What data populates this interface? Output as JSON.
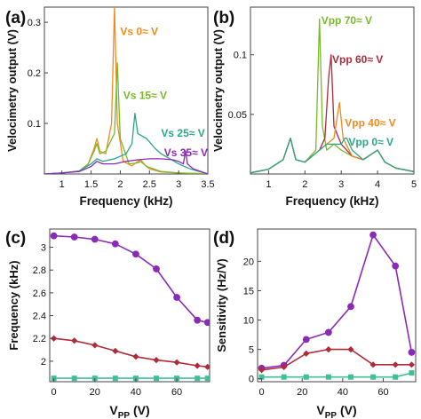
{
  "panels": [
    {
      "label": "(a)",
      "chart_data": {
        "type": "line",
        "xlabel": "Frequency (kHz)",
        "ylabel": "Velocimetry output  (V)",
        "xlim": [
          0.7,
          3.5
        ],
        "ylim": [
          0,
          0.33
        ],
        "xticks": [
          1,
          1.5,
          2,
          2.5,
          3,
          3.5
        ],
        "xtick_labels": [
          "1",
          "1.5",
          "2",
          "2.5",
          "3",
          "3.5"
        ],
        "yticks": [
          0.1,
          0.2,
          0.3
        ],
        "ytick_labels": [
          "0.1",
          "0.2",
          "0.3"
        ],
        "grid": false,
        "series": [
          {
            "name": "Vs 0≈ V",
            "color": "#f08a1e",
            "x": [
              0.7,
              1.0,
              1.3,
              1.45,
              1.55,
              1.6,
              1.65,
              1.75,
              1.85,
              1.9,
              1.95,
              2.05,
              2.2,
              2.3,
              2.35,
              2.42,
              2.5,
              2.7,
              3.0,
              3.3,
              3.5
            ],
            "y": [
              0.0,
              0.002,
              0.006,
              0.02,
              0.05,
              0.07,
              0.045,
              0.04,
              0.1,
              0.33,
              0.1,
              0.025,
              0.016,
              0.025,
              0.028,
              0.018,
              0.01,
              0.004,
              0.002,
              0.001,
              0.0
            ]
          },
          {
            "name": "Vs 15≈ V",
            "color": "#78b92a",
            "x": [
              0.7,
              1.0,
              1.3,
              1.45,
              1.55,
              1.6,
              1.65,
              1.75,
              1.9,
              1.95,
              2.0,
              2.15,
              2.3,
              2.35,
              2.45,
              2.7,
              3.0,
              3.3,
              3.5
            ],
            "y": [
              0.0,
              0.002,
              0.006,
              0.02,
              0.045,
              0.06,
              0.04,
              0.045,
              0.08,
              0.22,
              0.07,
              0.02,
              0.022,
              0.025,
              0.015,
              0.005,
              0.002,
              0.001,
              0.0
            ]
          },
          {
            "name": "Vs 25≈ V",
            "color": "#2ba58a",
            "x": [
              0.7,
              1.0,
              1.3,
              1.5,
              1.6,
              1.7,
              1.9,
              2.1,
              2.2,
              2.25,
              2.3,
              2.45,
              2.6,
              2.7,
              2.85,
              3.0,
              3.2,
              3.5
            ],
            "y": [
              0.0,
              0.002,
              0.006,
              0.02,
              0.03,
              0.025,
              0.03,
              0.04,
              0.06,
              0.12,
              0.08,
              0.07,
              0.05,
              0.04,
              0.03,
              0.02,
              0.01,
              0.0
            ]
          },
          {
            "name": "Vs 35≈ V",
            "color": "#8a2ab8",
            "x": [
              0.7,
              1.0,
              1.3,
              1.5,
              1.6,
              1.7,
              1.9,
              2.1,
              2.3,
              2.5,
              2.7,
              2.9,
              3.0,
              3.08,
              3.12,
              3.15,
              3.25,
              3.5
            ],
            "y": [
              0.0,
              0.002,
              0.005,
              0.015,
              0.025,
              0.02,
              0.02,
              0.025,
              0.028,
              0.03,
              0.03,
              0.028,
              0.025,
              0.02,
              0.045,
              0.02,
              0.01,
              0.0
            ]
          }
        ],
        "annotations": [
          {
            "text": "Vs 0≈ V",
            "color": "#f08a1e",
            "x": 2.0,
            "y": 0.275
          },
          {
            "text": "Vs 15≈ V",
            "color": "#78b92a",
            "x": 2.05,
            "y": 0.148
          },
          {
            "text": "Vs 25≈ V",
            "color": "#2ba58a",
            "x": 2.7,
            "y": 0.074
          },
          {
            "text": "Vs 35≈ V",
            "color": "#8a2ab8",
            "x": 2.75,
            "y": 0.035
          }
        ]
      }
    },
    {
      "label": "(b)",
      "chart_data": {
        "type": "line",
        "xlabel": "Frequency (kHz)",
        "ylabel": "Velocimetry output  (V)",
        "xlim": [
          0.5,
          5.0
        ],
        "ylim": [
          0,
          0.14
        ],
        "xticks": [
          1,
          2,
          3,
          4,
          5
        ],
        "xtick_labels": [
          "1",
          "2",
          "3",
          "4",
          "5"
        ],
        "yticks": [
          0.05,
          0.1
        ],
        "ytick_labels": [
          "0.05",
          "0.1"
        ],
        "grid": false,
        "series": [
          {
            "name": "Vpp 70≈ V",
            "color": "#78b92a",
            "x": [
              0.5,
              1.0,
              1.4,
              1.6,
              1.75,
              2.0,
              2.3,
              2.4,
              2.48,
              2.6,
              2.8,
              3.0,
              3.3,
              3.6,
              4.0,
              4.2,
              4.5,
              5.0
            ],
            "y": [
              0.001,
              0.004,
              0.012,
              0.03,
              0.012,
              0.01,
              0.02,
              0.13,
              0.04,
              0.02,
              0.025,
              0.02,
              0.015,
              0.012,
              0.02,
              0.01,
              0.005,
              0.002
            ]
          },
          {
            "name": "Vpp 60≈ V",
            "color": "#b02a3a",
            "x": [
              0.5,
              1.0,
              1.4,
              1.6,
              1.75,
              2.0,
              2.4,
              2.55,
              2.65,
              2.72,
              2.8,
              3.0,
              3.3,
              3.6,
              4.0,
              4.2,
              4.5,
              5.0
            ],
            "y": [
              0.001,
              0.004,
              0.012,
              0.03,
              0.012,
              0.01,
              0.02,
              0.03,
              0.08,
              0.1,
              0.04,
              0.025,
              0.015,
              0.012,
              0.02,
              0.01,
              0.005,
              0.002
            ]
          },
          {
            "name": "Vpp 40≈ V",
            "color": "#f08a1e",
            "x": [
              0.5,
              1.0,
              1.4,
              1.6,
              1.75,
              2.0,
              2.4,
              2.6,
              2.8,
              2.9,
              2.95,
              3.05,
              3.3,
              3.6,
              4.0,
              4.2,
              4.5,
              5.0
            ],
            "y": [
              0.001,
              0.004,
              0.012,
              0.03,
              0.012,
              0.01,
              0.02,
              0.025,
              0.03,
              0.05,
              0.06,
              0.03,
              0.015,
              0.012,
              0.02,
              0.01,
              0.005,
              0.002
            ]
          },
          {
            "name": "Vpp 0≈ V",
            "color": "#2ba58a",
            "x": [
              0.5,
              1.0,
              1.4,
              1.6,
              1.75,
              2.0,
              2.4,
              2.6,
              2.8,
              3.0,
              3.1,
              3.15,
              3.3,
              3.6,
              4.0,
              4.2,
              4.5,
              5.0
            ],
            "y": [
              0.001,
              0.004,
              0.012,
              0.03,
              0.012,
              0.01,
              0.02,
              0.025,
              0.025,
              0.025,
              0.03,
              0.03,
              0.02,
              0.012,
              0.02,
              0.01,
              0.005,
              0.002
            ]
          }
        ],
        "annotations": [
          {
            "text": "Vpp 70≈ V",
            "color": "#78b92a",
            "x": 2.45,
            "y": 0.126
          },
          {
            "text": "Vpp 60≈ V",
            "color": "#b02a3a",
            "x": 2.75,
            "y": 0.093
          },
          {
            "text": "Vpp 40≈ V",
            "color": "#f08a1e",
            "x": 3.1,
            "y": 0.04
          },
          {
            "text": "Vpp 0≈ V",
            "color": "#2ba58a",
            "x": 3.2,
            "y": 0.024
          }
        ]
      }
    },
    {
      "label": "(c)",
      "chart_data": {
        "type": "line",
        "xlabel_main": "V",
        "xlabel_sub": "PP",
        "xlabel_unit": " (V)",
        "ylabel": "Frequency (kHz)",
        "xlim": [
          -2,
          76
        ],
        "ylim": [
          1.82,
          3.16
        ],
        "xticks": [
          0,
          20,
          40,
          60
        ],
        "xtick_labels": [
          "0",
          "20",
          "40",
          "60"
        ],
        "yticks": [
          2.0,
          2.2,
          2.4,
          2.6,
          2.8,
          3.0
        ],
        "ytick_labels": [
          "2",
          "2.2",
          "2.4",
          "2.6",
          "2.8",
          "3"
        ],
        "grid": false,
        "series": [
          {
            "name": "",
            "color": "#8a2ab8",
            "marker": "circle",
            "x": [
              0,
              10,
              20,
              30,
              40,
              50,
              60,
              70,
              75
            ],
            "y": [
              3.1,
              3.09,
              3.07,
              3.03,
              2.94,
              2.81,
              2.56,
              2.36,
              2.34
            ]
          },
          {
            "name": "",
            "color": "#b02a3a",
            "marker": "diamond",
            "x": [
              0,
              10,
              20,
              30,
              40,
              50,
              60,
              70,
              75
            ],
            "y": [
              2.2,
              2.18,
              2.14,
              2.09,
              2.04,
              2.01,
              1.99,
              1.96,
              1.95
            ]
          },
          {
            "name": "",
            "color": "#3fbf9a",
            "marker": "square",
            "x": [
              0,
              10,
              20,
              30,
              40,
              50,
              60,
              70,
              75
            ],
            "y": [
              1.85,
              1.85,
              1.85,
              1.85,
              1.85,
              1.85,
              1.85,
              1.85,
              1.85
            ]
          }
        ]
      }
    },
    {
      "label": "(d)",
      "chart_data": {
        "type": "line",
        "xlabel_main": "V",
        "xlabel_sub": "PP",
        "xlabel_unit": " (V)",
        "ylabel": "Sensitivity (Hz/V)",
        "xlim": [
          -2,
          76
        ],
        "ylim": [
          -0.5,
          25.5
        ],
        "xticks": [
          0,
          20,
          40,
          60
        ],
        "xtick_labels": [
          "0",
          "20",
          "40",
          "60"
        ],
        "yticks": [
          0,
          5,
          10,
          15,
          20
        ],
        "ytick_labels": [
          "0",
          "5",
          "10",
          "15",
          "20"
        ],
        "grid": false,
        "series": [
          {
            "name": "",
            "color": "#8a2ab8",
            "marker": "circle",
            "x": [
              0,
              11,
              22,
              33,
              44,
              55,
              66,
              74
            ],
            "y": [
              1.8,
              2.3,
              6.7,
              7.9,
              12.3,
              24.5,
              19.2,
              4.5
            ]
          },
          {
            "name": "",
            "color": "#b02a3a",
            "marker": "diamond",
            "x": [
              0,
              11,
              22,
              33,
              44,
              55,
              66,
              74
            ],
            "y": [
              1.5,
              2.0,
              4.3,
              5.0,
              5.0,
              2.4,
              2.4,
              2.4
            ]
          },
          {
            "name": "",
            "color": "#3fbf9a",
            "marker": "square",
            "x": [
              0,
              11,
              22,
              33,
              44,
              55,
              66,
              74
            ],
            "y": [
              0.3,
              0.3,
              0.3,
              0.3,
              0.3,
              0.3,
              0.3,
              1.0
            ]
          }
        ]
      }
    }
  ]
}
